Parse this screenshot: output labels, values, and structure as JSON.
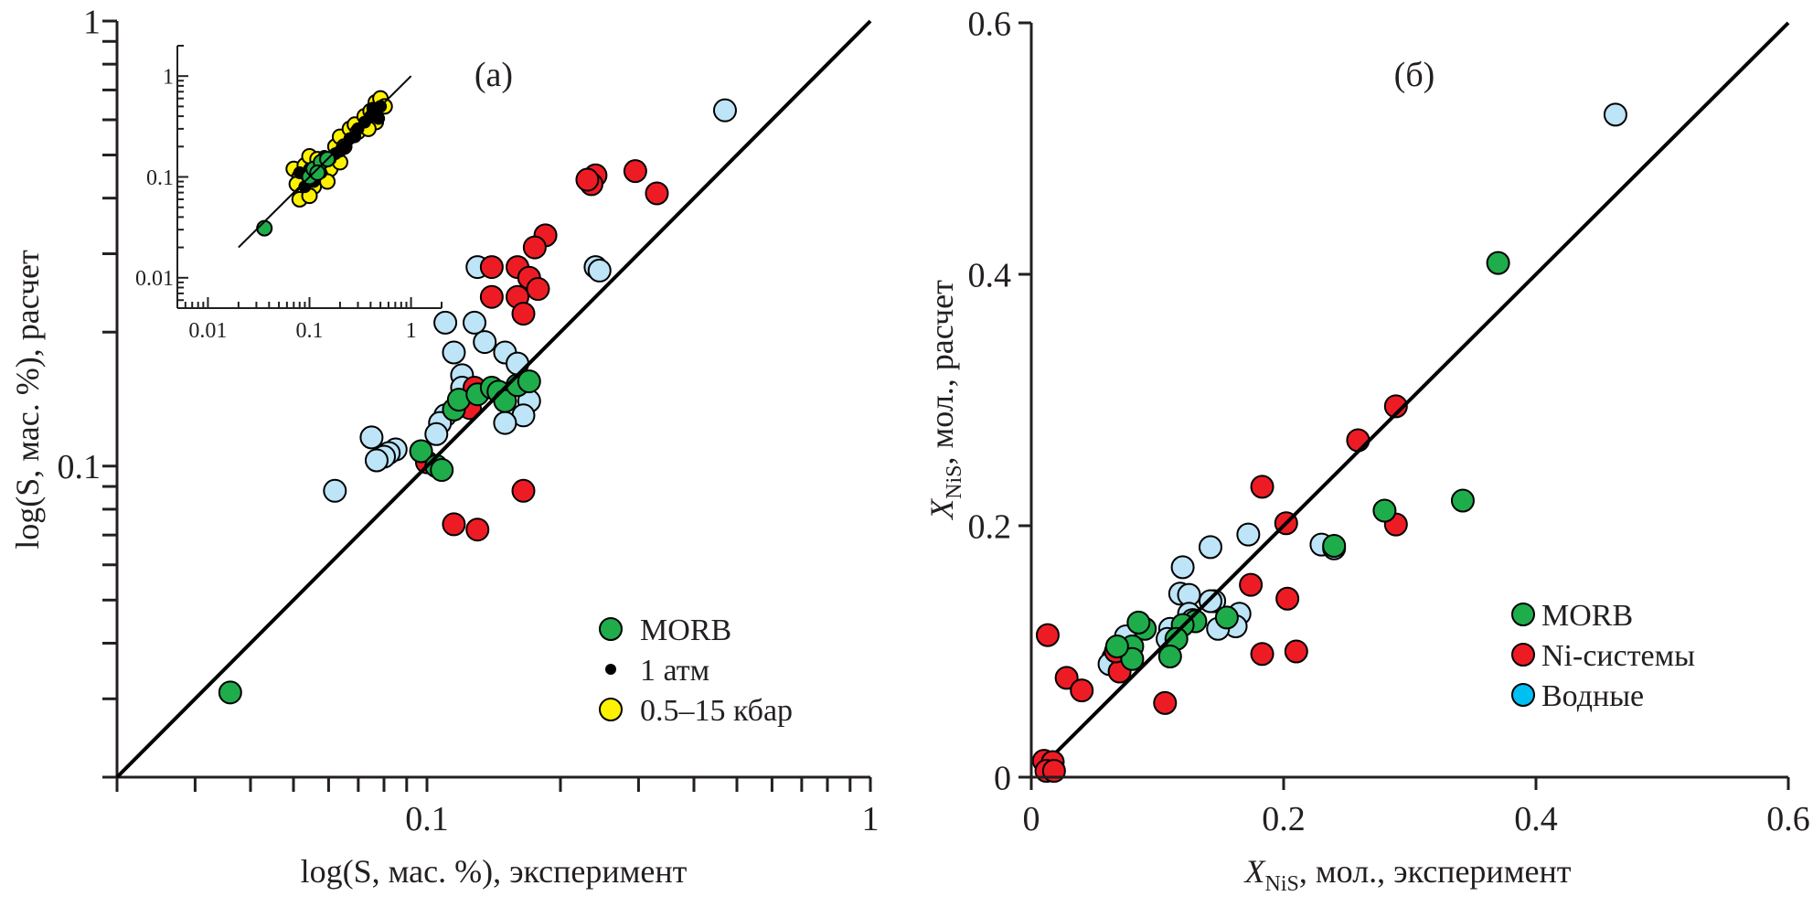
{
  "chart_data": [
    {
      "panel": "a",
      "type": "scatter",
      "panel_label": "(а)",
      "xscale": "log",
      "yscale": "log",
      "xlim": [
        0.02,
        1
      ],
      "ylim": [
        0.02,
        1
      ],
      "xlabel": "log(S, мас. %), эксперимент",
      "ylabel": "log(S, мас. %), расчет",
      "xticks": [
        {
          "v": 0.1,
          "label": "0.1"
        },
        {
          "v": 1,
          "label": "1"
        }
      ],
      "yticks": [
        {
          "v": 0.1,
          "label": "0.1"
        },
        {
          "v": 1,
          "label": "1"
        }
      ],
      "reference_line": "1:1",
      "legend_position": "bottom-right",
      "legend": [
        {
          "label": "MORB",
          "color": "#1fac4b",
          "marker": "large-circle"
        },
        {
          "label": "1 атм",
          "color": "#000000",
          "marker": "small-dot"
        },
        {
          "label": "0.5–15 кбар",
          "color": "#fff200",
          "marker": "large-circle"
        }
      ],
      "series": [
        {
          "name": "Водные",
          "color": "#bde4f7",
          "points": [
            [
              0.47,
              0.63
            ],
            [
              0.24,
              0.28
            ],
            [
              0.245,
              0.275
            ],
            [
              0.13,
              0.28
            ],
            [
              0.128,
              0.21
            ],
            [
              0.135,
              0.19
            ],
            [
              0.11,
              0.21
            ],
            [
              0.115,
              0.18
            ],
            [
              0.12,
              0.16
            ],
            [
              0.15,
              0.18
            ],
            [
              0.16,
              0.17
            ],
            [
              0.17,
              0.14
            ],
            [
              0.165,
              0.13
            ],
            [
              0.15,
              0.125
            ],
            [
              0.11,
              0.13
            ],
            [
              0.107,
              0.125
            ],
            [
              0.085,
              0.109
            ],
            [
              0.082,
              0.107
            ],
            [
              0.08,
              0.105
            ],
            [
              0.075,
              0.116
            ],
            [
              0.077,
              0.103
            ],
            [
              0.062,
              0.088
            ],
            [
              0.105,
              0.118
            ],
            [
              0.12,
              0.15
            ]
          ]
        },
        {
          "name": "Ni-системы",
          "color": "#ed1c24",
          "points": [
            [
              0.295,
              0.46
            ],
            [
              0.33,
              0.41
            ],
            [
              0.24,
              0.45
            ],
            [
              0.235,
              0.43
            ],
            [
              0.23,
              0.44
            ],
            [
              0.185,
              0.33
            ],
            [
              0.175,
              0.31
            ],
            [
              0.14,
              0.28
            ],
            [
              0.16,
              0.28
            ],
            [
              0.17,
              0.265
            ],
            [
              0.178,
              0.25
            ],
            [
              0.14,
              0.24
            ],
            [
              0.16,
              0.24
            ],
            [
              0.165,
              0.22
            ],
            [
              0.128,
              0.15
            ],
            [
              0.125,
              0.135
            ],
            [
              0.1,
              0.102
            ],
            [
              0.115,
              0.074
            ],
            [
              0.13,
              0.072
            ],
            [
              0.165,
              0.088
            ]
          ]
        },
        {
          "name": "MORB",
          "color": "#1fac4b",
          "points": [
            [
              0.036,
              0.031
            ],
            [
              0.097,
              0.108
            ],
            [
              0.105,
              0.1
            ],
            [
              0.108,
              0.098
            ],
            [
              0.115,
              0.134
            ],
            [
              0.118,
              0.141
            ],
            [
              0.13,
              0.145
            ],
            [
              0.14,
              0.15
            ],
            [
              0.145,
              0.147
            ],
            [
              0.15,
              0.14
            ],
            [
              0.16,
              0.152
            ],
            [
              0.17,
              0.155
            ]
          ]
        }
      ],
      "inset": {
        "type": "scatter",
        "xscale": "log",
        "yscale": "log",
        "xlim": [
          0.005,
          2
        ],
        "ylim": [
          0.005,
          2
        ],
        "xticks": [
          {
            "v": 0.01,
            "label": "0.01"
          },
          {
            "v": 0.1,
            "label": "0.1"
          },
          {
            "v": 1,
            "label": "1"
          }
        ],
        "yticks": [
          {
            "v": 0.01,
            "label": "0.01"
          },
          {
            "v": 0.1,
            "label": "0.1"
          },
          {
            "v": 1,
            "label": "1"
          }
        ],
        "reference_line": "1:1 from 0.02 to 1",
        "series": [
          {
            "name": "0.5–15 кбар",
            "color": "#fff200",
            "points": [
              [
                0.07,
                0.12
              ],
              [
                0.08,
                0.1
              ],
              [
                0.075,
                0.085
              ],
              [
                0.09,
                0.07
              ],
              [
                0.11,
                0.08
              ],
              [
                0.09,
                0.13
              ],
              [
                0.1,
                0.16
              ],
              [
                0.12,
                0.15
              ],
              [
                0.14,
                0.14
              ],
              [
                0.16,
                0.12
              ],
              [
                0.13,
                0.1
              ],
              [
                0.18,
                0.2
              ],
              [
                0.2,
                0.25
              ],
              [
                0.22,
                0.2
              ],
              [
                0.25,
                0.3
              ],
              [
                0.28,
                0.33
              ],
              [
                0.3,
                0.28
              ],
              [
                0.35,
                0.4
              ],
              [
                0.4,
                0.45
              ],
              [
                0.45,
                0.55
              ],
              [
                0.5,
                0.6
              ],
              [
                0.55,
                0.5
              ],
              [
                0.45,
                0.35
              ],
              [
                0.38,
                0.3
              ],
              [
                0.08,
                0.06
              ],
              [
                0.1,
                0.065
              ],
              [
                0.15,
                0.09
              ],
              [
                0.2,
                0.14
              ]
            ]
          },
          {
            "name": "1 атм",
            "color": "#000000",
            "points": [
              [
                0.08,
                0.11
              ],
              [
                0.1,
                0.12
              ],
              [
                0.12,
                0.13
              ],
              [
                0.14,
                0.16
              ],
              [
                0.16,
                0.15
              ],
              [
                0.18,
                0.17
              ],
              [
                0.2,
                0.18
              ],
              [
                0.25,
                0.24
              ],
              [
                0.3,
                0.3
              ],
              [
                0.35,
                0.35
              ],
              [
                0.4,
                0.4
              ],
              [
                0.45,
                0.42
              ],
              [
                0.5,
                0.5
              ],
              [
                0.09,
                0.08
              ],
              [
                0.11,
                0.09
              ],
              [
                0.13,
                0.11
              ],
              [
                0.22,
                0.2
              ],
              [
                0.28,
                0.25
              ],
              [
                0.42,
                0.48
              ],
              [
                0.48,
                0.38
              ]
            ]
          },
          {
            "name": "MORB",
            "color": "#1fac4b",
            "points": [
              [
                0.036,
                0.031
              ],
              [
                0.1,
                0.1
              ],
              [
                0.11,
                0.12
              ],
              [
                0.13,
                0.14
              ],
              [
                0.15,
                0.15
              ],
              [
                0.12,
                0.11
              ]
            ]
          }
        ]
      }
    },
    {
      "panel": "b",
      "type": "scatter",
      "panel_label": "(б)",
      "xscale": "linear",
      "yscale": "linear",
      "xlim": [
        0,
        0.6
      ],
      "ylim": [
        0,
        0.6
      ],
      "xlabel_main": "X",
      "xlabel_sub": "NiS",
      "xlabel_rest": ", мол., эксперимент",
      "ylabel_main": "X",
      "ylabel_sub": "NiS",
      "ylabel_rest": ", мол., расчет",
      "xticks": [
        {
          "v": 0,
          "label": "0"
        },
        {
          "v": 0.2,
          "label": "0.2"
        },
        {
          "v": 0.4,
          "label": "0.4"
        },
        {
          "v": 0.6,
          "label": "0.6"
        }
      ],
      "yticks": [
        {
          "v": 0,
          "label": "0"
        },
        {
          "v": 0.2,
          "label": "0.2"
        },
        {
          "v": 0.4,
          "label": "0.4"
        },
        {
          "v": 0.6,
          "label": "0.6"
        }
      ],
      "reference_line": "1:1",
      "legend_position": "bottom-right",
      "legend": [
        {
          "label": "MORB",
          "color": "#1fac4b"
        },
        {
          "label": "Ni-системы",
          "color": "#ed1c24"
        },
        {
          "label": "Водные",
          "color": "#00bff3"
        }
      ],
      "series": [
        {
          "name": "Водные",
          "color": "#bde4f7",
          "points": [
            [
              0.463,
              0.527
            ],
            [
              0.23,
              0.185
            ],
            [
              0.24,
              0.182
            ],
            [
              0.172,
              0.193
            ],
            [
              0.142,
              0.183
            ],
            [
              0.12,
              0.167
            ],
            [
              0.118,
              0.146
            ],
            [
              0.125,
              0.145
            ],
            [
              0.145,
              0.14
            ],
            [
              0.142,
              0.14
            ],
            [
              0.125,
              0.13
            ],
            [
              0.128,
              0.125
            ],
            [
              0.165,
              0.13
            ],
            [
              0.162,
              0.12
            ],
            [
              0.148,
              0.118
            ],
            [
              0.11,
              0.118
            ],
            [
              0.108,
              0.11
            ],
            [
              0.075,
              0.112
            ],
            [
              0.065,
              0.095
            ],
            [
              0.062,
              0.09
            ]
          ]
        },
        {
          "name": "Ni-системы",
          "color": "#ed1c24",
          "points": [
            [
              0.289,
              0.295
            ],
            [
              0.259,
              0.268
            ],
            [
              0.183,
              0.231
            ],
            [
              0.202,
              0.202
            ],
            [
              0.289,
              0.201
            ],
            [
              0.174,
              0.153
            ],
            [
              0.203,
              0.142
            ],
            [
              0.21,
              0.1
            ],
            [
              0.183,
              0.098
            ],
            [
              0.106,
              0.059
            ],
            [
              0.013,
              0.113
            ],
            [
              0.028,
              0.079
            ],
            [
              0.04,
              0.069
            ],
            [
              0.07,
              0.084
            ],
            [
              0.067,
              0.1
            ],
            [
              0.01,
              0.013
            ],
            [
              0.017,
              0.012
            ],
            [
              0.012,
              0.005
            ],
            [
              0.018,
              0.005
            ]
          ]
        },
        {
          "name": "MORB",
          "color": "#1fac4b",
          "points": [
            [
              0.37,
              0.409
            ],
            [
              0.342,
              0.22
            ],
            [
              0.28,
              0.212
            ],
            [
              0.24,
              0.184
            ],
            [
              0.155,
              0.127
            ],
            [
              0.13,
              0.124
            ],
            [
              0.12,
              0.121
            ],
            [
              0.115,
              0.11
            ],
            [
              0.11,
              0.096
            ],
            [
              0.09,
              0.118
            ],
            [
              0.085,
              0.123
            ],
            [
              0.08,
              0.104
            ],
            [
              0.08,
              0.094
            ],
            [
              0.068,
              0.104
            ]
          ]
        }
      ]
    }
  ]
}
